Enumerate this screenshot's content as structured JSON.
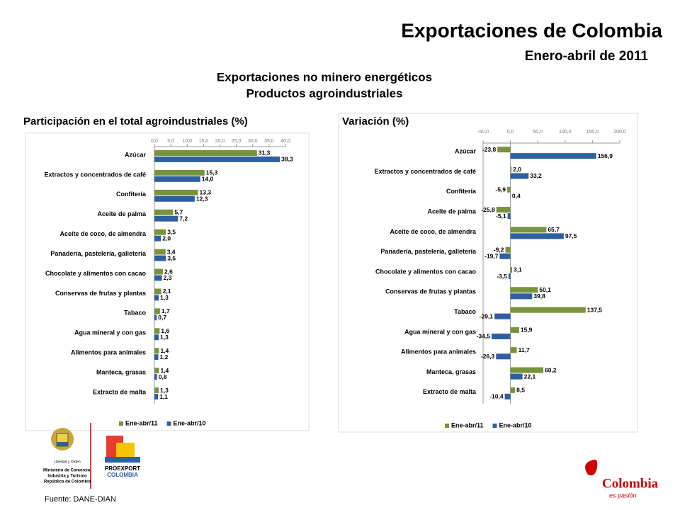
{
  "header": {
    "title": "Exportaciones de Colombia",
    "subtitle": "Enero-abril de 2011",
    "heading1": "Exportaciones no minero energéticos",
    "heading2": "Productos agroindustriales"
  },
  "footer": {
    "source": "Fuente: DANE-DIAN",
    "ministry": [
      "Libertad y Orden",
      "Ministerio de Comercio,",
      "Industria y Turismo",
      "República de Colombia"
    ],
    "proexport": [
      "PROEXPORT",
      "COLOMBIA"
    ],
    "brand": [
      "Colombia",
      "es pasión"
    ]
  },
  "chart_data": [
    {
      "type": "bar",
      "orientation": "horizontal",
      "title": "Participación en el total agroindustriales (%)",
      "categories": [
        "Azúcar",
        "Extractos y concentrados de café",
        "Confitería",
        "Aceite de palma",
        "Aceite de coco, de almendra",
        "Panadería, pastelería, galletería",
        "Chocolate y alimentos con cacao",
        "Conservas de frutas y plantas",
        "Tabaco",
        "Agua mineral y con gas",
        "Alimentos para animales",
        "Manteca, grasas",
        "Extracto de malta"
      ],
      "series": [
        {
          "name": "Ene-abr/11",
          "color": "#77933c",
          "values": [
            31.3,
            15.3,
            13.3,
            5.7,
            3.5,
            3.4,
            2.6,
            2.1,
            1.7,
            1.6,
            1.4,
            1.4,
            1.3
          ],
          "value_labels": [
            "31,3",
            "15,3",
            "13,3",
            "5,7",
            "3,5",
            "3,4",
            "2,6",
            "2,1",
            "1,7",
            "1,6",
            "1,4",
            "1,4",
            "1,3"
          ]
        },
        {
          "name": "Ene-abr/10",
          "color": "#2e5f9e",
          "values": [
            38.3,
            14.0,
            12.3,
            7.2,
            2.0,
            3.5,
            2.3,
            1.3,
            0.7,
            1.3,
            1.2,
            0.8,
            1.1
          ],
          "value_labels": [
            "38,3",
            "14,0",
            "12,3",
            "7,2",
            "2,0",
            "3,5",
            "2,3",
            "1,3",
            "0,7",
            "1,3",
            "1,2",
            "0,8",
            "1,1"
          ]
        }
      ],
      "xlim": [
        0,
        40
      ],
      "xticks": [
        {
          "value": 0,
          "label": "0,0"
        },
        {
          "value": 5,
          "label": "5,0"
        },
        {
          "value": 10,
          "label": "10,0"
        },
        {
          "value": 15,
          "label": "15,0"
        },
        {
          "value": 20,
          "label": "20,0"
        },
        {
          "value": 25,
          "label": "25,0"
        },
        {
          "value": 30,
          "label": "30,0"
        },
        {
          "value": 35,
          "label": "35,0"
        },
        {
          "value": 40,
          "label": "40,0"
        }
      ],
      "grid": false,
      "legend": "bottom"
    },
    {
      "type": "bar",
      "orientation": "horizontal",
      "title": "Variación (%)",
      "categories": [
        "Azúcar",
        "Extractos y concentrados de café",
        "Confitería",
        "Aceite de palma",
        "Aceite de coco, de almendra",
        "Panadería, pastelería, galletería",
        "Chocolate y alimentos con cacao",
        "Conservas de frutas y plantas",
        "Tabaco",
        "Agua mineral y con gas",
        "Alimentos para animales",
        "Manteca, grasas",
        "Extracto de malta"
      ],
      "series": [
        {
          "name": "Ene-abr/11",
          "color": "#77933c",
          "values": [
            -23.8,
            2.0,
            -5.9,
            -25.8,
            65.7,
            -9.2,
            3.1,
            50.1,
            137.5,
            15.9,
            11.7,
            60.2,
            8.5
          ],
          "value_labels": [
            "-23,8",
            "2,0",
            "-5,9",
            "-25,8",
            "65,7",
            "-9,2",
            "3,1",
            "50,1",
            "137,5",
            "15,9",
            "11,7",
            "60,2",
            "8,5"
          ]
        },
        {
          "name": "Ene-abr/10",
          "color": "#2e5f9e",
          "values": [
            156.9,
            33.2,
            0.4,
            -5.1,
            97.5,
            -19.7,
            -3.5,
            39.8,
            -29.1,
            -34.5,
            -26.3,
            22.1,
            -10.4
          ],
          "value_labels": [
            "156,9",
            "33,2",
            "0,4",
            "-5,1",
            "97,5",
            "-19,7",
            "-3,5",
            "39,8",
            "-29,1",
            "-34,5",
            "-26,3",
            "22,1",
            "-10,4"
          ]
        }
      ],
      "xlim": [
        -50,
        200
      ],
      "xticks": [
        {
          "value": -50,
          "label": "-50,0"
        },
        {
          "value": 0,
          "label": "0,0"
        },
        {
          "value": 50,
          "label": "50,0"
        },
        {
          "value": 100,
          "label": "100,0"
        },
        {
          "value": 150,
          "label": "150,0"
        },
        {
          "value": 200,
          "label": "200,0"
        }
      ],
      "grid": false,
      "legend": "bottom"
    }
  ]
}
